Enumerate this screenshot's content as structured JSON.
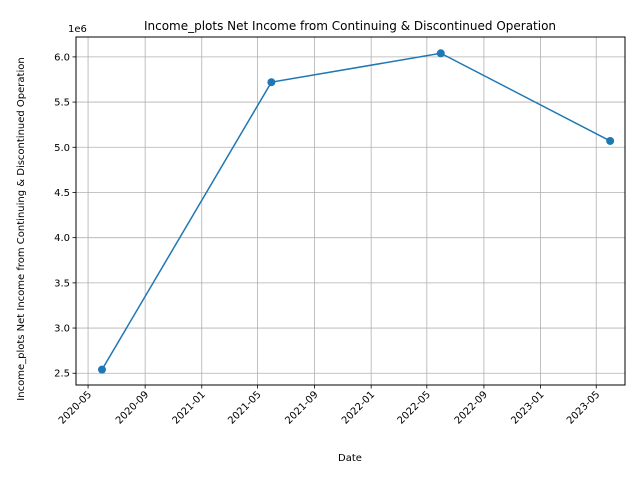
{
  "chart_data": {
    "type": "line",
    "title": "Income_plots Net Income from Continuing & Discontinued Operation",
    "xlabel": "Date",
    "ylabel": "Income_plots Net Income from Continuing & Discontinued Operation",
    "y_offset_label": "1e6",
    "x_ticks": [
      "2020-05",
      "2020-09",
      "2021-01",
      "2021-05",
      "2021-09",
      "2022-01",
      "2022-05",
      "2022-09",
      "2023-01",
      "2023-05"
    ],
    "y_ticks": [
      "2.5",
      "3.0",
      "3.5",
      "4.0",
      "4.5",
      "5.0",
      "5.5",
      "6.0"
    ],
    "xlim": [
      "2020-04-05",
      "2023-07-02"
    ],
    "ylim": [
      2.37,
      6.22
    ],
    "grid": true,
    "series": [
      {
        "color": "#1f77b4",
        "x": [
          "2020-05-31",
          "2021-05-31",
          "2022-05-31",
          "2023-05-31"
        ],
        "y": [
          2.54,
          5.72,
          6.04,
          5.07
        ]
      }
    ]
  }
}
